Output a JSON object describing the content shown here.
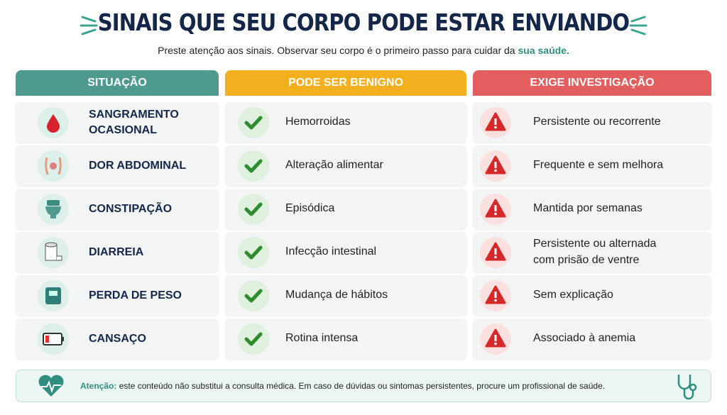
{
  "header": {
    "title": "SINAIS QUE SEU CORPO PODE ESTAR ENVIANDO",
    "subtitle": "Preste atenção aos sinais. Observar seu corpo é o primeiro passo para cuidar da",
    "subtitle_highlight": "sua saúde."
  },
  "table": {
    "columns": [
      "SITUAÇÃO",
      "PODE SER BENIGNO",
      "EXIGE INVESTIGAÇÃO"
    ],
    "rows": [
      [
        "SANGRAMENTO\nOCASIONAL",
        "Hemorroidas",
        "Persistente ou recorrente"
      ],
      [
        "DOR ABDOMINAL",
        "Alteração alimentar",
        "Frequente e sem melhora"
      ],
      [
        "CONSTIPAÇÃO",
        "Episódica",
        "Mantida por semanas"
      ],
      [
        "DIARREIA",
        "Infecção intestinal",
        "Persistente ou alternada\ncom prisão de ventre"
      ],
      [
        "PERDA DE PESO",
        "Mudança de hábitos",
        "Sem explicação"
      ],
      [
        "CANSAÇO",
        "Rotina intensa",
        "Associado à anemia"
      ]
    ]
  },
  "footer": {
    "label": "Atenção:",
    "text": "este conteúdo não substitui a consulta médica. Em caso de dúvidas ou sintomas persistentes, procure um profissional de saúde."
  }
}
